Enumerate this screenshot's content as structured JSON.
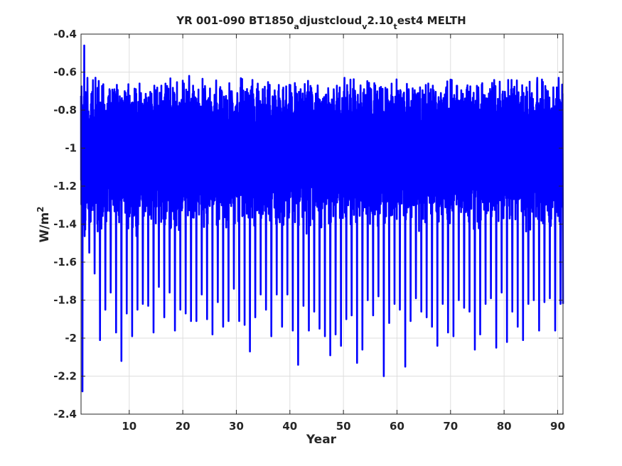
{
  "chart_data": {
    "type": "line",
    "title_parts": [
      {
        "text": "YR 001-090 BT1850",
        "sub": false
      },
      {
        "text": "a",
        "sub": true
      },
      {
        "text": "djustcloud",
        "sub": false
      },
      {
        "text": "v",
        "sub": true
      },
      {
        "text": "2.10",
        "sub": false
      },
      {
        "text": "t",
        "sub": true
      },
      {
        "text": "est4 MELTH",
        "sub": false
      }
    ],
    "xlabel": "Year",
    "ylabel_base": "W/m",
    "ylabel_sup": "2",
    "xlim": [
      1,
      91
    ],
    "ylim": [
      -2.4,
      -0.4
    ],
    "xticks": [
      10,
      20,
      30,
      40,
      50,
      60,
      70,
      80,
      90
    ],
    "xtick_labels": [
      "10",
      "20",
      "30",
      "40",
      "50",
      "60",
      "70",
      "80",
      "90"
    ],
    "yticks": [
      -2.4,
      -2.2,
      -2.0,
      -1.8,
      -1.6,
      -1.4,
      -1.2,
      -1.0,
      -0.8,
      -0.6,
      -0.4
    ],
    "ytick_labels": [
      "-2.4",
      "-2.2",
      "-2",
      "-1.8",
      "-1.6",
      "-1.4",
      "-1.2",
      "-1",
      "-0.8",
      "-0.6",
      "-0.4"
    ],
    "grid": true,
    "color": "#0000ff",
    "series": [
      {
        "description": "Daily MELTH values with strong annual cycle; one spike minimum and maximum per model year",
        "x": [
          1,
          1.5,
          2,
          3,
          4,
          5,
          6,
          7,
          8,
          9,
          10,
          11,
          12,
          13,
          14,
          15,
          16,
          17,
          18,
          19,
          20,
          21,
          22,
          23,
          24,
          25,
          26,
          27,
          28,
          29,
          30,
          31,
          32,
          33,
          34,
          35,
          36,
          37,
          38,
          39,
          40,
          41,
          42,
          43,
          44,
          45,
          46,
          47,
          48,
          49,
          50,
          51,
          52,
          53,
          54,
          55,
          56,
          57,
          58,
          59,
          60,
          61,
          62,
          63,
          64,
          65,
          66,
          67,
          68,
          69,
          70,
          71,
          72,
          73,
          74,
          75,
          76,
          77,
          78,
          79,
          80,
          81,
          82,
          83,
          84,
          85,
          86,
          87,
          88,
          89,
          90,
          91
        ],
        "annual_min": [
          -2.28,
          -1.22,
          -1.55,
          -1.66,
          -2.01,
          -1.85,
          -1.76,
          -1.97,
          -2.12,
          -1.87,
          -1.99,
          -1.85,
          -1.82,
          -1.83,
          -1.97,
          -1.73,
          -1.89,
          -1.76,
          -1.96,
          -1.85,
          -1.87,
          -1.91,
          -1.91,
          -1.77,
          -1.9,
          -1.98,
          -1.81,
          -1.94,
          -1.91,
          -1.74,
          -1.91,
          -1.93,
          -2.07,
          -1.89,
          -1.77,
          -1.85,
          -1.99,
          -1.77,
          -1.94,
          -1.77,
          -1.96,
          -2.14,
          -1.83,
          -1.96,
          -1.86,
          -1.95,
          -1.99,
          -2.09,
          -1.98,
          -2.04,
          -1.9,
          -1.88,
          -2.13,
          -2.06,
          -1.8,
          -1.88,
          -1.78,
          -2.2,
          -1.92,
          -1.82,
          -1.85,
          -2.15,
          -1.91,
          -1.79,
          -1.86,
          -1.89,
          -1.94,
          -2.04,
          -1.82,
          -1.97,
          -1.99,
          -1.8,
          -1.84,
          -1.86,
          -2.06,
          -1.98,
          -1.82,
          -1.79,
          -2.05,
          -1.76,
          -2.02,
          -1.86,
          -1.94,
          -2.01,
          -1.82,
          -1.8,
          -1.96,
          -1.81,
          -1.79,
          -1.96,
          -1.82,
          -1.82
        ],
        "annual_max": [
          -0.72,
          -0.46,
          -0.63,
          -0.78,
          -0.74,
          -0.85,
          -0.85,
          -0.83,
          -0.82,
          -0.81,
          -0.85,
          -0.82,
          -0.71,
          -0.77,
          -0.81,
          -0.81,
          -0.77,
          -0.7,
          -0.77,
          -0.78,
          -0.66,
          -0.62,
          -0.73,
          -0.79,
          -0.71,
          -0.77,
          -0.75,
          -0.75,
          -0.78,
          -0.74,
          -0.71,
          -0.73,
          -0.71,
          -0.81,
          -0.78,
          -0.77,
          -0.73,
          -0.77,
          -0.75,
          -0.75,
          -0.78,
          -0.75,
          -0.77,
          -0.74,
          -0.73,
          -0.67,
          -0.74,
          -0.73,
          -0.69,
          -0.71,
          -0.63,
          -0.72,
          -0.72,
          -0.67,
          -0.72,
          -0.69,
          -0.73,
          -0.72,
          -0.69,
          -0.73,
          -0.73,
          -0.72,
          -0.69,
          -0.73,
          -0.72,
          -0.74,
          -0.71,
          -0.74,
          -0.71,
          -0.68,
          -0.76,
          -0.69,
          -0.73,
          -0.72,
          -0.74,
          -0.68,
          -0.72,
          -0.73,
          -0.72,
          -0.65,
          -0.73,
          -0.76,
          -0.78,
          -0.73,
          -0.68,
          -0.71,
          -0.63,
          -0.73,
          -0.7,
          -0.68,
          -0.63,
          -0.84
        ]
      }
    ]
  }
}
